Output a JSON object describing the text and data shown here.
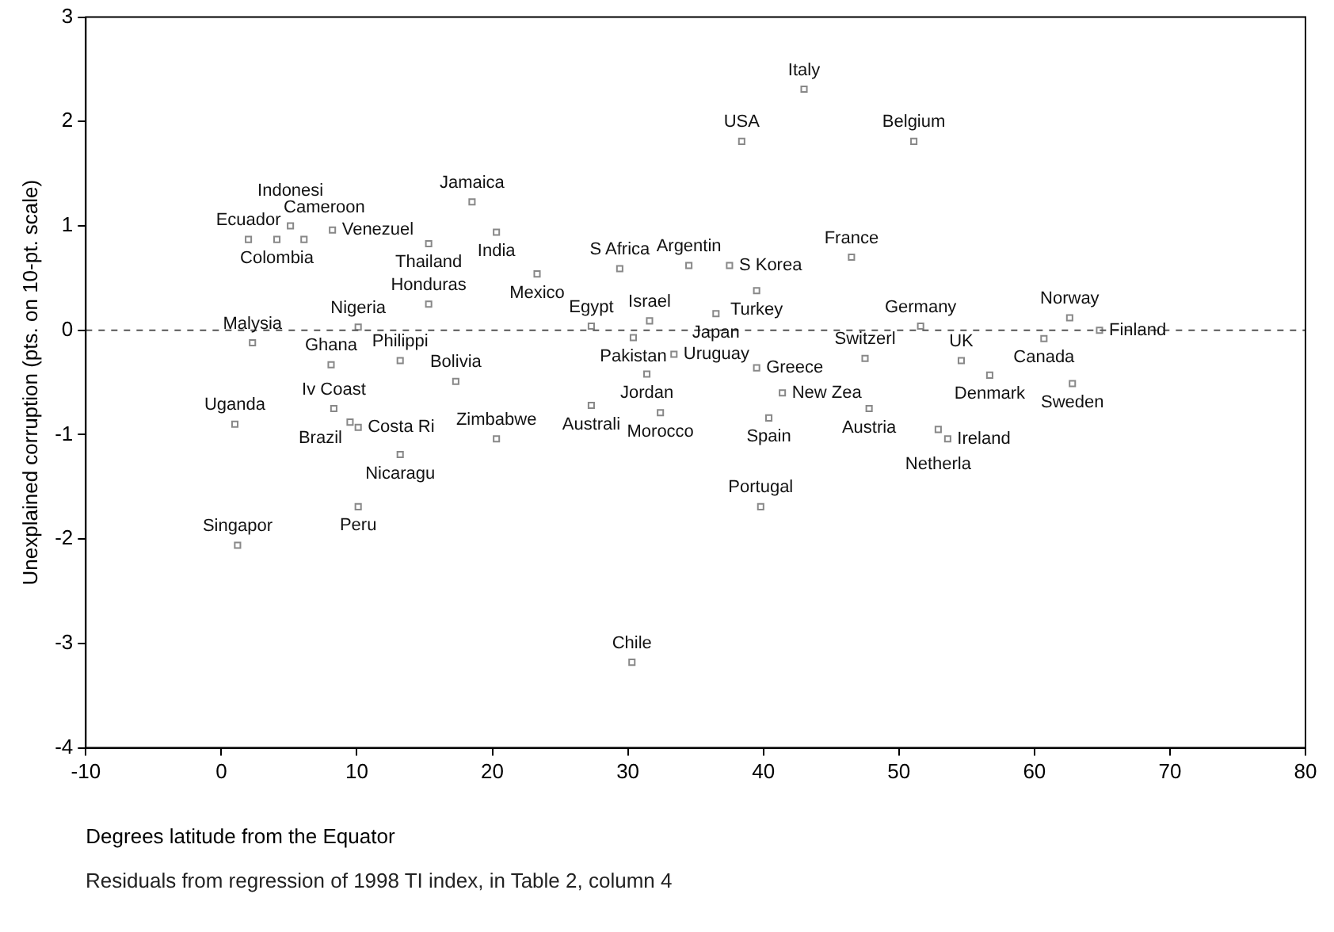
{
  "chart_data": {
    "type": "scatter",
    "ylabel": "Unexplained corruption (pts. on 10-pt. scale)",
    "xlabel": "Degrees latitude from the Equator",
    "annotations": [
      "Residuals from regression of 1998 TI index, in Table 2, column 4"
    ],
    "xlim": [
      -10,
      80
    ],
    "xticks": [
      -10,
      0,
      10,
      20,
      30,
      40,
      50,
      60,
      70,
      80
    ],
    "ylim": [
      -4,
      3
    ],
    "yticks": [
      -4,
      -3,
      -2,
      -1,
      0,
      1,
      2,
      3
    ],
    "grid": false,
    "legend": false,
    "marker": "square",
    "ref_lines": [
      {
        "axis": "y",
        "value": 0,
        "color": "#555555",
        "line_style": "dashed"
      }
    ],
    "series": [
      {
        "color": "#888888",
        "x": [
          2.0,
          4.1,
          6.1,
          5.1,
          8.2,
          15.3,
          18.5,
          20.3,
          23.3,
          15.3,
          10.1,
          2.3,
          8.1,
          13.2,
          17.3,
          1.0,
          8.3,
          9.5,
          10.1,
          13.2,
          20.3,
          10.1,
          1.2,
          43.0,
          38.4,
          51.1,
          29.4,
          34.5,
          37.5,
          39.5,
          36.5,
          27.3,
          31.6,
          30.4,
          33.4,
          31.4,
          39.5,
          47.5,
          27.3,
          32.4,
          41.4,
          40.4,
          47.8,
          46.5,
          51.6,
          54.6,
          56.7,
          60.7,
          62.6,
          64.8,
          62.8,
          52.9,
          53.6,
          39.8,
          30.3
        ],
        "values": [
          0.87,
          0.87,
          0.87,
          1.0,
          0.96,
          0.83,
          1.23,
          0.94,
          0.54,
          0.25,
          0.03,
          -0.12,
          -0.33,
          -0.29,
          -0.49,
          -0.9,
          -0.75,
          -0.88,
          -0.93,
          -1.19,
          -1.04,
          -1.69,
          -2.06,
          2.31,
          1.81,
          1.81,
          0.59,
          0.62,
          0.62,
          0.38,
          0.16,
          0.04,
          0.09,
          -0.07,
          -0.23,
          -0.42,
          -0.36,
          -0.27,
          -0.72,
          -0.79,
          -0.6,
          -0.84,
          -0.75,
          0.7,
          0.04,
          -0.29,
          -0.43,
          -0.08,
          0.12,
          0.0,
          -0.51,
          -0.95,
          -1.04,
          -1.69,
          -3.18
        ],
        "value_labels": [
          "Ecuador",
          "Colombia",
          "Cameroon",
          "Indonesi",
          "Venezuel",
          "Thailand",
          "Jamaica",
          "India",
          "Mexico",
          "Honduras",
          "Nigeria",
          "Malysia",
          "Ghana",
          "Philippi",
          "Bolivia",
          "Uganda",
          "Iv Coast",
          "Brazil",
          "Costa Ri",
          "Nicaragu",
          "Zimbabwe",
          "Peru",
          "Singapor",
          "Italy",
          "USA",
          "Belgium",
          "S Africa",
          "Argentin",
          "S Korea",
          "Turkey",
          "Japan",
          "Egypt",
          "Israel",
          "Pakistan",
          "Uruguay",
          "Jordan",
          "Greece",
          "Switzerl",
          "Australi",
          "Morocco",
          "New Zea",
          "Spain",
          "Austria",
          "France",
          "Germany",
          "UK",
          "Denmark",
          "Canada",
          "Norway",
          "Finland",
          "Sweden",
          "Netherla",
          "Ireland",
          "Portugal",
          "Chile"
        ]
      }
    ]
  }
}
